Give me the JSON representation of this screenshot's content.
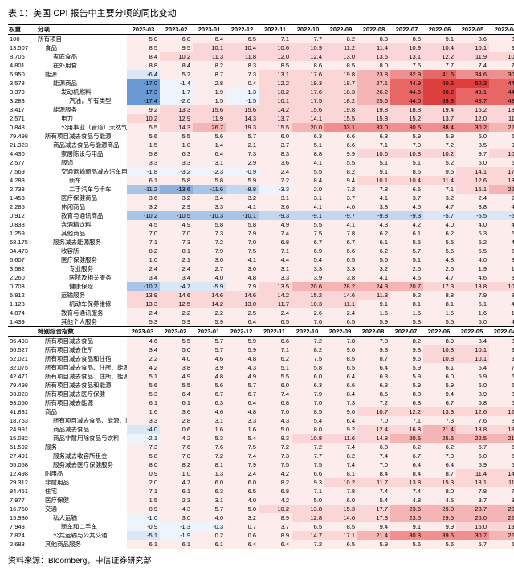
{
  "title": "表 1：美国 CPI 报告中主要分项的同比变动",
  "source": "资料来源：Bloomberg，中信证券研究部",
  "header_labels": [
    "权重",
    "分项"
  ],
  "periods": [
    "2023-03",
    "2023-02",
    "2023-01",
    "2022-12",
    "2022-11",
    "2022-10",
    "2022-09",
    "2022-08",
    "2022-07",
    "2022-06",
    "2022-05",
    "2022-04"
  ],
  "section2_label": "特别综合指数",
  "heat": {
    "pos": [
      "#fdecec",
      "#fbd6d6",
      "#f6b5b5",
      "#ef8f8f",
      "#e76666",
      "#dd3e3e"
    ],
    "neg": [
      "#eef4fb",
      "#dbe7f6",
      "#c3d7ef",
      "#a8c4e7",
      "#8bb0de",
      "#6a99d4"
    ],
    "neutral": "#ffffff",
    "max": 60,
    "min": -20
  },
  "rows": [
    {
      "w": "100",
      "n": "所有项目",
      "i": 0,
      "v": [
        5.0,
        6.0,
        6.4,
        6.5,
        7.1,
        7.7,
        8.2,
        8.3,
        8.5,
        9.1,
        8.6,
        8.3
      ]
    },
    {
      "w": "13.507",
      "n": "食品",
      "i": 1,
      "v": [
        8.5,
        9.5,
        10.1,
        10.4,
        10.6,
        10.9,
        11.2,
        11.4,
        10.9,
        10.4,
        10.1,
        9.4
      ]
    },
    {
      "w": "8.706",
      "n": "家庭食品",
      "i": 2,
      "v": [
        8.4,
        10.2,
        11.3,
        11.8,
        12.0,
        12.4,
        13.0,
        13.5,
        13.1,
        12.2,
        11.9,
        10.8
      ]
    },
    {
      "w": "4.801",
      "n": "在外用食",
      "i": 2,
      "v": [
        8.8,
        8.4,
        8.2,
        8.3,
        8.5,
        8.6,
        8.5,
        8.0,
        7.6,
        7.7,
        7.4,
        7.2
      ]
    },
    {
      "w": "6.950",
      "n": "能源",
      "i": 1,
      "v": [
        -6.4,
        5.2,
        8.7,
        7.3,
        13.1,
        17.6,
        19.8,
        23.8,
        32.9,
        41.6,
        34.6,
        30.3
      ]
    },
    {
      "w": "3.578",
      "n": "能源商品",
      "i": 2,
      "v": [
        -17.0,
        -1.4,
        2.8,
        0.4,
        12.2,
        19.3,
        18.7,
        27.1,
        44.9,
        60.6,
        50.3,
        44.7
      ]
    },
    {
      "w": "3.379",
      "n": "发动机燃料",
      "i": 3,
      "v": [
        -17.3,
        -1.7,
        1.9,
        -1.3,
        10.2,
        17.6,
        18.3,
        26.2,
        44.5,
        60.2,
        49.1,
        44.1
      ]
    },
    {
      "w": "3.283",
      "n": "汽油，所有类型",
      "i": 4,
      "v": [
        -17.4,
        -2.0,
        1.5,
        -1.5,
        10.1,
        17.5,
        18.2,
        25.6,
        44.0,
        59.9,
        48.7,
        43.6
      ]
    },
    {
      "w": "3.417",
      "n": "能源服务",
      "i": 2,
      "v": [
        9.2,
        13.3,
        15.6,
        15.6,
        14.2,
        15.6,
        19.8,
        19.8,
        18.8,
        19.4,
        16.2,
        13.7
      ]
    },
    {
      "w": "2.571",
      "n": "电力",
      "i": 3,
      "v": [
        10.2,
        12.9,
        11.9,
        14.3,
        13.7,
        14.1,
        15.5,
        15.8,
        15.2,
        13.7,
        12.0,
        11.0
      ]
    },
    {
      "w": "0.848",
      "n": "公用事业（管道）天然气服务",
      "i": 3,
      "v": [
        5.5,
        14.3,
        26.7,
        19.3,
        15.5,
        20.0,
        33.1,
        33.0,
        30.5,
        38.4,
        30.2,
        22.7
      ]
    },
    {
      "w": "79.498",
      "n": "所有项目减去食品与能源",
      "i": 1,
      "v": [
        5.6,
        5.5,
        5.6,
        5.7,
        6.0,
        6.3,
        6.6,
        6.3,
        5.9,
        5.9,
        6.0,
        6.2
      ]
    },
    {
      "w": "21.323",
      "n": "商品减去食品与能源商品",
      "i": 2,
      "v": [
        1.5,
        1.0,
        1.4,
        2.1,
        3.7,
        5.1,
        6.6,
        7.1,
        7.0,
        7.2,
        8.5,
        9.7
      ]
    },
    {
      "w": "4.430",
      "n": "家居陈设与用品",
      "i": 3,
      "v": [
        5.8,
        6.3,
        6.4,
        7.3,
        8.3,
        8.8,
        9.9,
        10.6,
        10.8,
        10.2,
        9.7,
        10.0
      ]
    },
    {
      "w": "2.577",
      "n": "服饰",
      "i": 3,
      "v": [
        3.3,
        3.3,
        3.1,
        2.9,
        3.6,
        4.1,
        5.5,
        5.1,
        5.1,
        5.2,
        5.0,
        5.4
      ]
    },
    {
      "w": "7.569",
      "n": "交通运输商品减去汽车用油",
      "i": 3,
      "v": [
        -1.8,
        -3.2,
        -2.3,
        -0.9,
        2.4,
        5.5,
        8.2,
        9.1,
        8.5,
        9.5,
        14.1,
        17.3
      ]
    },
    {
      "w": "4.288",
      "n": "新车",
      "i": 4,
      "v": [
        6.1,
        5.8,
        5.8,
        5.9,
        7.2,
        8.4,
        9.4,
        10.1,
        10.4,
        11.4,
        12.6,
        13.2
      ]
    },
    {
      "w": "2.738",
      "n": "二手汽车与卡车",
      "i": 4,
      "v": [
        -11.2,
        -13.6,
        -11.6,
        -8.8,
        -3.3,
        2.0,
        7.2,
        7.8,
        6.6,
        7.1,
        16.1,
        22.7
      ]
    },
    {
      "w": "1.453",
      "n": "医疗保健商品",
      "i": 3,
      "v": [
        3.6,
        3.2,
        3.4,
        3.2,
        3.1,
        3.1,
        3.7,
        4.1,
        3.7,
        3.2,
        2.4,
        2.1
      ]
    },
    {
      "w": "2.285",
      "n": "休闲商品",
      "i": 3,
      "v": [
        3.2,
        2.9,
        3.3,
        4.1,
        3.6,
        4.1,
        4.0,
        3.8,
        4.5,
        4.7,
        3.8,
        4.1
      ]
    },
    {
      "w": "0.912",
      "n": "教育与通讯商品",
      "i": 3,
      "v": [
        -10.2,
        -10.5,
        -10.3,
        -10.1,
        -9.3,
        -9.1,
        -9.7,
        -9.8,
        -9.3,
        -5.7,
        -5.5,
        -5.1
      ]
    },
    {
      "w": "0.838",
      "n": "含酒精饮料",
      "i": 3,
      "v": [
        4.5,
        4.9,
        5.8,
        5.8,
        4.9,
        5.5,
        4.1,
        4.3,
        4.2,
        4.0,
        4.0,
        4.0
      ]
    },
    {
      "w": "1.259",
      "n": "其他商品",
      "i": 3,
      "v": [
        7.0,
        7.0,
        7.3,
        7.9,
        7.4,
        7.5,
        7.8,
        6.2,
        6.1,
        6.2,
        6.3,
        6.0
      ]
    },
    {
      "w": "58.175",
      "n": "服务减去能源服务",
      "i": 2,
      "v": [
        7.1,
        7.3,
        7.2,
        7.0,
        6.8,
        6.7,
        6.7,
        6.1,
        5.5,
        5.5,
        5.2,
        4.9
      ]
    },
    {
      "w": "34.473",
      "n": "收容所",
      "i": 3,
      "v": [
        8.2,
        8.1,
        7.9,
        7.5,
        7.1,
        6.9,
        6.6,
        6.2,
        5.7,
        5.6,
        5.5,
        5.1
      ]
    },
    {
      "w": "6.607",
      "n": "医疗保健服务",
      "i": 3,
      "v": [
        1.0,
        2.1,
        3.0,
        4.1,
        4.4,
        5.4,
        6.5,
        5.6,
        5.1,
        4.8,
        4.0,
        3.5
      ]
    },
    {
      "w": "3.582",
      "n": "专业服务",
      "i": 4,
      "v": [
        2.4,
        2.4,
        2.7,
        3.0,
        3.1,
        3.3,
        3.3,
        3.2,
        2.6,
        2.6,
        1.9,
        1.9
      ]
    },
    {
      "w": "2.260",
      "n": "医院及相关服务",
      "i": 4,
      "v": [
        3.4,
        3.4,
        4.0,
        4.8,
        3.3,
        3.9,
        3.8,
        4.1,
        4.5,
        4.7,
        4.6,
        3.8
      ]
    },
    {
      "w": "0.703",
      "n": "健康保险",
      "i": 4,
      "v": [
        -10.7,
        -4.7,
        -5.9,
        7.9,
        13.5,
        20.6,
        28.2,
        24.3,
        20.7,
        17.3,
        13.8,
        10.4
      ]
    },
    {
      "w": "5.812",
      "n": "运输服务",
      "i": 3,
      "v": [
        13.9,
        14.6,
        14.6,
        14.6,
        14.2,
        15.2,
        14.6,
        11.3,
        9.2,
        8.8,
        7.9,
        8.5
      ]
    },
    {
      "w": "1.123",
      "n": "机动车保养维修",
      "i": 4,
      "v": [
        13.3,
        12.5,
        14.2,
        13.0,
        11.7,
        10.3,
        11.1,
        9.1,
        8.1,
        8.1,
        6.1,
        4.8
      ]
    },
    {
      "w": "4.874",
      "n": "教育与通讯服务",
      "i": 3,
      "v": [
        2.4,
        2.2,
        2.2,
        2.5,
        2.4,
        2.6,
        2.4,
        1.6,
        1.5,
        1.5,
        1.6,
        1.5
      ]
    },
    {
      "w": "1.439",
      "n": "其他个人服务",
      "i": 3,
      "v": [
        5.3,
        5.9,
        5.9,
        6.4,
        6.5,
        7.6,
        6.5,
        5.9,
        5.8,
        5.5,
        5.0,
        4.7
      ]
    }
  ],
  "rows2": [
    {
      "w": "86.493",
      "n": "所有项目减去食品",
      "i": 1,
      "v": [
        4.6,
        5.5,
        5.7,
        5.9,
        6.6,
        7.2,
        7.8,
        7.8,
        8.2,
        8.9,
        8.4,
        8.1
      ]
    },
    {
      "w": "66.527",
      "n": "所有项目减去住所",
      "i": 1,
      "v": [
        3.4,
        5.0,
        5.7,
        5.9,
        7.1,
        8.2,
        9.0,
        9.3,
        9.8,
        10.8,
        10.1,
        9.8
      ]
    },
    {
      "w": "52.021",
      "n": "所有项目减去食品和住宿",
      "i": 1,
      "v": [
        2.2,
        4.0,
        4.6,
        4.8,
        6.2,
        7.5,
        8.5,
        8.7,
        9.6,
        10.8,
        10.1,
        9.8
      ]
    },
    {
      "w": "32.075",
      "n": "所有项目减去食品、住所、能源",
      "i": 1,
      "v": [
        4.2,
        3.8,
        3.9,
        4.3,
        5.1,
        5.8,
        6.5,
        6.4,
        5.9,
        6.1,
        6.4,
        7.0
      ]
    },
    {
      "w": "42.471",
      "n": "所有项目减去食品、住所、能源、旧轿车与卡车",
      "i": 1,
      "v": [
        5.1,
        4.9,
        4.8,
        4.9,
        5.5,
        6.0,
        6.4,
        6.3,
        5.9,
        6.0,
        5.9,
        6.0
      ]
    },
    {
      "w": "79.498",
      "n": "所有项目减去食品和能源",
      "i": 1,
      "v": [
        5.6,
        5.5,
        5.6,
        5.7,
        6.0,
        6.3,
        6.6,
        6.3,
        5.9,
        5.9,
        6.0,
        6.2
      ]
    },
    {
      "w": "93.023",
      "n": "所有项目减去医疗保健",
      "i": 1,
      "v": [
        5.3,
        6.4,
        6.7,
        6.7,
        7.4,
        7.9,
        8.4,
        8.5,
        8.8,
        9.4,
        8.9,
        8.5
      ]
    },
    {
      "w": "93.050",
      "n": "所有项目减去能源",
      "i": 1,
      "v": [
        6.1,
        6.1,
        6.3,
        6.4,
        6.8,
        7.0,
        7.3,
        7.2,
        6.8,
        6.7,
        6.8,
        6.8
      ]
    },
    {
      "w": "41.831",
      "n": "商品",
      "i": 1,
      "v": [
        1.6,
        3.6,
        4.6,
        4.8,
        7.0,
        8.5,
        9.6,
        10.7,
        12.2,
        13.3,
        12.6,
        12.2
      ]
    },
    {
      "w": "18.753",
      "n": "所有项目减去食品、能源、旧轿车与卡车",
      "i": 2,
      "v": [
        3.3,
        2.8,
        3.1,
        3.3,
        4.3,
        5.4,
        6.4,
        7.0,
        7.1,
        7.3,
        7.6,
        8.1
      ]
    },
    {
      "w": "24.991",
      "n": "商品减去食品",
      "i": 2,
      "v": [
        -4.0,
        0.6,
        1.6,
        1.6,
        5.0,
        8.0,
        9.2,
        12.4,
        16.8,
        21.4,
        18.8,
        18.2
      ]
    },
    {
      "w": "15.082",
      "n": "商品非耐用除食品与饮料",
      "i": 2,
      "v": [
        -2.1,
        4.2,
        5.3,
        5.4,
        8.3,
        10.8,
        11.6,
        14.8,
        20.5,
        25.6,
        22.5,
        21.4
      ]
    },
    {
      "w": "61.592",
      "n": "服务",
      "i": 1,
      "v": [
        7.3,
        7.6,
        7.6,
        7.5,
        7.2,
        7.2,
        7.4,
        6.8,
        6.2,
        6.2,
        5.7,
        5.4
      ]
    },
    {
      "w": "27.491",
      "n": "服务减去收容所租金",
      "i": 2,
      "v": [
        5.8,
        7.0,
        7.2,
        7.4,
        7.3,
        7.7,
        8.2,
        7.4,
        6.7,
        7.0,
        6.0,
        5.4
      ]
    },
    {
      "w": "55.058",
      "n": "服务减去医疗保健服务",
      "i": 2,
      "v": [
        8.0,
        8.2,
        8.1,
        7.9,
        7.5,
        7.5,
        7.4,
        7.0,
        6.4,
        6.4,
        5.9,
        5.6
      ]
    },
    {
      "w": "12.498",
      "n": "耐用品",
      "i": 1,
      "v": [
        0.9,
        1.0,
        1.3,
        2.4,
        4.2,
        6.6,
        8.1,
        8.4,
        8.4,
        8.7,
        11.4,
        14.0
      ]
    },
    {
      "w": "29.312",
      "n": "非耐用品",
      "i": 1,
      "v": [
        2.0,
        4.7,
        6.0,
        6.0,
        8.2,
        9.3,
        10.2,
        11.7,
        13.8,
        15.3,
        13.1,
        11.4
      ]
    },
    {
      "w": "84.451",
      "n": "住宅",
      "i": 1,
      "v": [
        7.1,
        6.1,
        6.3,
        6.5,
        6.8,
        7.1,
        7.8,
        7.4,
        7.4,
        8.0,
        7.8,
        7.6
      ]
    },
    {
      "w": "7.977",
      "n": "医疗保健",
      "i": 1,
      "v": [
        1.5,
        2.3,
        3.1,
        4.0,
        4.2,
        5.0,
        6.0,
        5.4,
        4.8,
        4.5,
        3.7,
        3.2
      ]
    },
    {
      "w": "16.760",
      "n": "交通",
      "i": 1,
      "v": [
        0.9,
        4.3,
        5.7,
        5.0,
        10.2,
        13.8,
        15.3,
        17.7,
        23.6,
        29.0,
        23.7,
        20.5
      ]
    },
    {
      "w": "15.980",
      "n": "私人运输",
      "i": 2,
      "v": [
        -1.0,
        3.0,
        4.0,
        3.2,
        8.9,
        12.8,
        14.6,
        17.3,
        23.5,
        29.5,
        26.0,
        22.7
      ]
    },
    {
      "w": "7.943",
      "n": "新车和二手车",
      "i": 3,
      "v": [
        -0.9,
        -1.3,
        -0.3,
        0.7,
        3.7,
        6.5,
        8.5,
        9.4,
        9.1,
        9.9,
        15.0,
        19.2
      ]
    },
    {
      "w": "7.824",
      "n": "公共运输与公共交通",
      "i": 2,
      "v": [
        -5.1,
        -1.9,
        0.2,
        0.6,
        8.9,
        14.7,
        17.1,
        21.4,
        30.3,
        39.5,
        30.7,
        26.5
      ]
    },
    {
      "w": "2.683",
      "n": "其他商品服务",
      "i": 1,
      "v": [
        6.1,
        6.1,
        6.1,
        6.4,
        6.4,
        7.2,
        6.5,
        5.9,
        5.6,
        5.6,
        5.7,
        5.1
      ]
    }
  ]
}
